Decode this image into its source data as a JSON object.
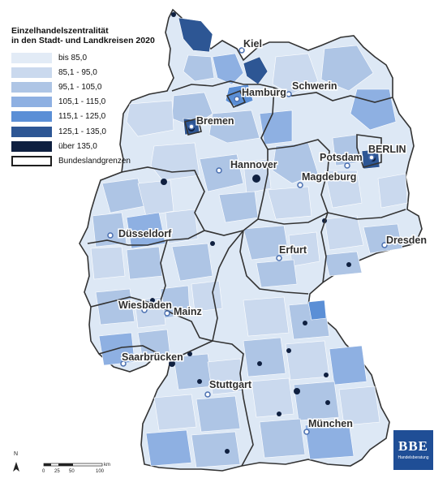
{
  "legend": {
    "title_line1": "Einzelhandelszentralität",
    "title_line2": "in den Stadt- und Landkreisen 2020",
    "items": [
      {
        "label": "bis 85,0",
        "color": "#e2ebf6"
      },
      {
        "label": "85,1 - 95,0",
        "color": "#cad9ee"
      },
      {
        "label": "95,1 - 105,0",
        "color": "#aec5e5"
      },
      {
        "label": "105,1 - 115,0",
        "color": "#8eb0e2"
      },
      {
        "label": "115,1 - 125,0",
        "color": "#5b8fd6"
      },
      {
        "label": "125,1 - 135,0",
        "color": "#2d5694"
      },
      {
        "label": "über 135,0",
        "color": "#0f2040"
      }
    ],
    "border_label": "Bundeslandgrenzen"
  },
  "cities": [
    {
      "name": "Kiel"
    },
    {
      "name": "Hamburg"
    },
    {
      "name": "Schwerin"
    },
    {
      "name": "Bremen"
    },
    {
      "name": "Hannover"
    },
    {
      "name": "Potsdam"
    },
    {
      "name": "BERLIN"
    },
    {
      "name": "Magdeburg"
    },
    {
      "name": "Düsseldorf"
    },
    {
      "name": "Erfurt"
    },
    {
      "name": "Dresden"
    },
    {
      "name": "Wiesbaden"
    },
    {
      "name": "Mainz"
    },
    {
      "name": "Saarbrücken"
    },
    {
      "name": "Stuttgart"
    },
    {
      "name": "München"
    }
  ],
  "scale": {
    "north": "N",
    "unit": "km",
    "ticks": [
      "0",
      "25",
      "50",
      "100"
    ]
  },
  "logo": {
    "main": "BBE",
    "sub": "Handelsberatung"
  }
}
